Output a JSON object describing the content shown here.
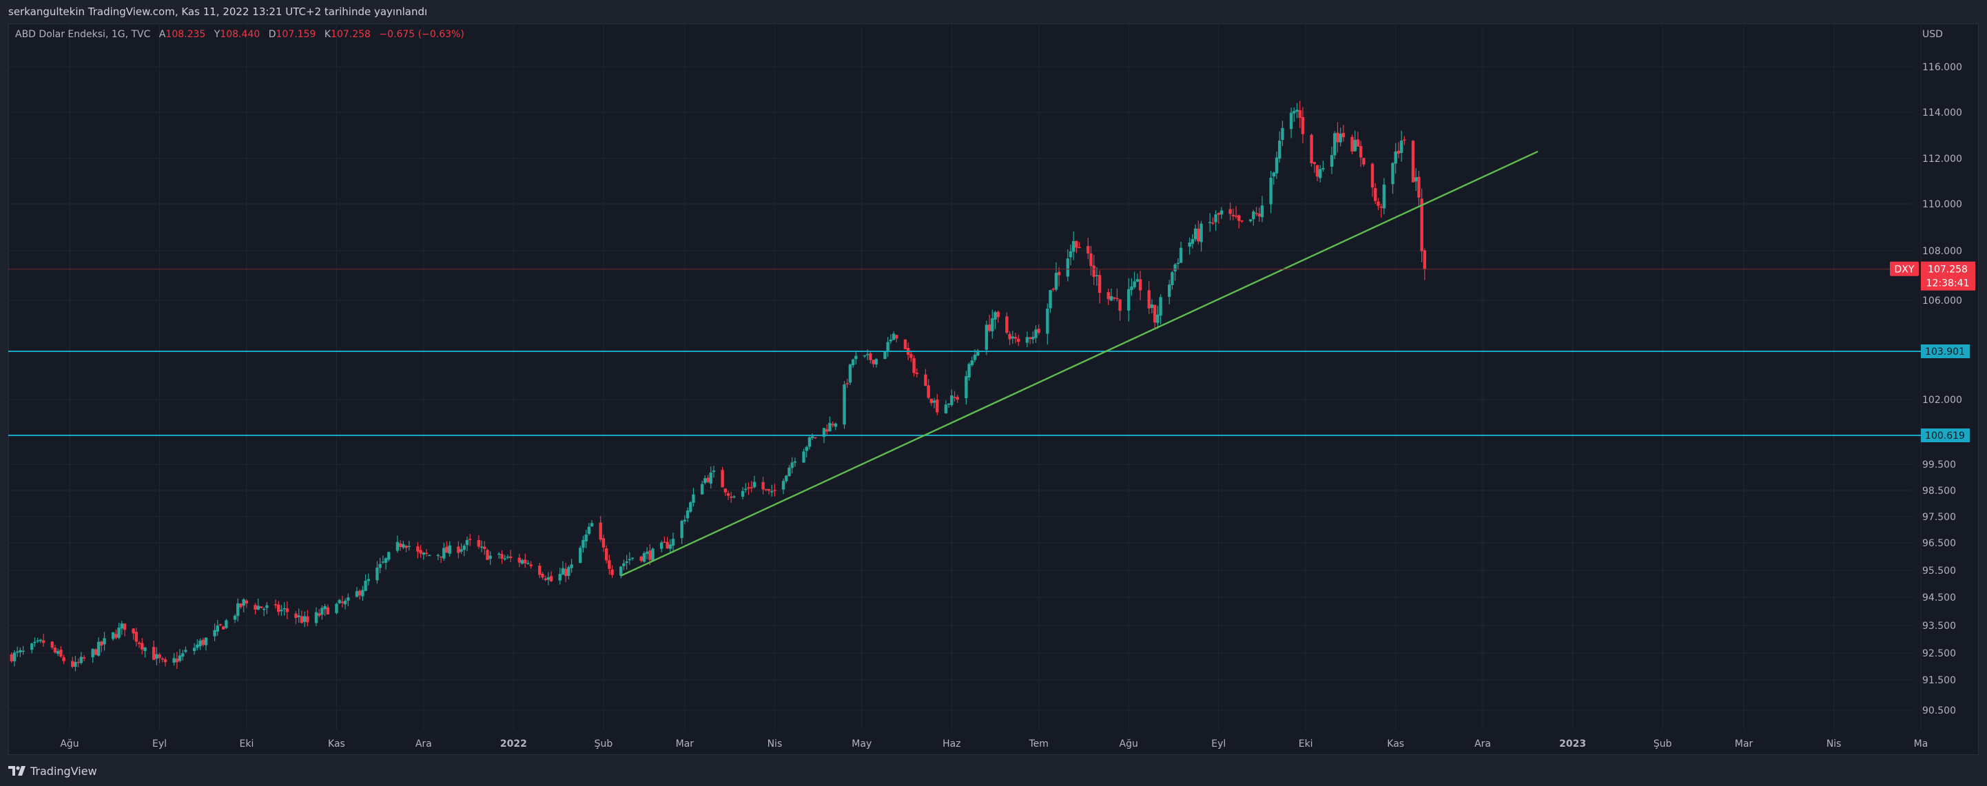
{
  "header": {
    "published_text": "serkangultekin TradingView.com, Kas 11, 2022 13:21 UTC+2 tarihinde yayınlandı"
  },
  "legend": {
    "title": "ABD Dolar Endeksi, 1G, TVC",
    "open_label": "A",
    "open": "108.235",
    "high_label": "Y",
    "high": "108.440",
    "low_label": "D",
    "low": "107.159",
    "close_label": "K",
    "close": "107.258",
    "change": "−0.675 (−0.63%)"
  },
  "footer": {
    "brand": "TradingView"
  },
  "colors": {
    "background": "#161a25",
    "frame": "#1e222d",
    "grid": "#222633",
    "up": "#26a69a",
    "down": "#f23645",
    "trendline": "#5fbd4f",
    "hline": "#19a7c4",
    "text": "#b2b5be"
  },
  "chart_data": {
    "type": "candlestick",
    "symbol": "DXY",
    "currency_label": "USD",
    "price_scale": "irregular (as printed by the axis)",
    "y_ticks": [
      "116.000",
      "114.000",
      "112.000",
      "110.000",
      "108.000",
      "106.000",
      "102.000",
      "99.500",
      "98.500",
      "97.500",
      "96.500",
      "95.500",
      "94.500",
      "93.500",
      "92.500",
      "91.500",
      "90.500"
    ],
    "x_ticks": [
      {
        "label": "Ağu",
        "date": "2021-08-01"
      },
      {
        "label": "Eyl",
        "date": "2021-09-01"
      },
      {
        "label": "Eki",
        "date": "2021-10-01"
      },
      {
        "label": "Kas",
        "date": "2021-11-01"
      },
      {
        "label": "Ara",
        "date": "2021-12-01"
      },
      {
        "label": "2022",
        "date": "2022-01-01",
        "bold": true
      },
      {
        "label": "Şub",
        "date": "2022-02-01"
      },
      {
        "label": "Mar",
        "date": "2022-03-01"
      },
      {
        "label": "Nis",
        "date": "2022-04-01"
      },
      {
        "label": "May",
        "date": "2022-05-01"
      },
      {
        "label": "Haz",
        "date": "2022-06-01"
      },
      {
        "label": "Tem",
        "date": "2022-07-01"
      },
      {
        "label": "Ağu",
        "date": "2022-08-01"
      },
      {
        "label": "Eyl",
        "date": "2022-09-01"
      },
      {
        "label": "Eki",
        "date": "2022-10-01"
      },
      {
        "label": "Kas",
        "date": "2022-11-01"
      },
      {
        "label": "Ara",
        "date": "2022-12-01"
      },
      {
        "label": "2023",
        "date": "2023-01-01",
        "bold": true
      },
      {
        "label": "Şub",
        "date": "2023-02-01"
      },
      {
        "label": "Mar",
        "date": "2023-03-01"
      },
      {
        "label": "Nis",
        "date": "2023-04-01"
      },
      {
        "label": "Ma",
        "date": "2023-05-01"
      }
    ],
    "price_path": [
      [
        "2021-07-12",
        92.4
      ],
      [
        "2021-07-16",
        92.5
      ],
      [
        "2021-07-23",
        92.9
      ],
      [
        "2021-07-29",
        92.3
      ],
      [
        "2021-08-03",
        92.0
      ],
      [
        "2021-08-11",
        92.7
      ],
      [
        "2021-08-20",
        93.5
      ],
      [
        "2021-08-27",
        92.7
      ],
      [
        "2021-09-03",
        92.0
      ],
      [
        "2021-09-10",
        92.5
      ],
      [
        "2021-09-20",
        93.2
      ],
      [
        "2021-09-30",
        94.3
      ],
      [
        "2021-10-08",
        94.1
      ],
      [
        "2021-10-15",
        94.0
      ],
      [
        "2021-10-22",
        93.6
      ],
      [
        "2021-10-29",
        94.1
      ],
      [
        "2021-11-05",
        94.3
      ],
      [
        "2021-11-12",
        95.1
      ],
      [
        "2021-11-24",
        96.6
      ],
      [
        "2021-11-30",
        96.0
      ],
      [
        "2021-12-10",
        96.2
      ],
      [
        "2021-12-17",
        96.5
      ],
      [
        "2021-12-24",
        96.0
      ],
      [
        "2021-12-31",
        95.9
      ],
      [
        "2022-01-07",
        95.8
      ],
      [
        "2022-01-14",
        95.1
      ],
      [
        "2022-01-21",
        95.6
      ],
      [
        "2022-01-28",
        97.2
      ],
      [
        "2022-02-04",
        95.5
      ],
      [
        "2022-02-11",
        96.0
      ],
      [
        "2022-02-18",
        96.1
      ],
      [
        "2022-02-25",
        96.6
      ],
      [
        "2022-03-07",
        98.9
      ],
      [
        "2022-03-11",
        99.1
      ],
      [
        "2022-03-18",
        98.2
      ],
      [
        "2022-03-25",
        98.8
      ],
      [
        "2022-03-31",
        98.3
      ],
      [
        "2022-04-08",
        99.8
      ],
      [
        "2022-04-14",
        100.5
      ],
      [
        "2022-04-22",
        101.2
      ],
      [
        "2022-04-28",
        103.6
      ],
      [
        "2022-05-06",
        103.6
      ],
      [
        "2022-05-13",
        104.6
      ],
      [
        "2022-05-20",
        103.0
      ],
      [
        "2022-05-27",
        101.7
      ],
      [
        "2022-06-03",
        102.1
      ],
      [
        "2022-06-10",
        104.1
      ],
      [
        "2022-06-15",
        105.3
      ],
      [
        "2022-06-24",
        104.2
      ],
      [
        "2022-06-30",
        104.7
      ],
      [
        "2022-07-07",
        107.0
      ],
      [
        "2022-07-14",
        108.5
      ],
      [
        "2022-07-22",
        106.6
      ],
      [
        "2022-07-29",
        105.9
      ],
      [
        "2022-08-05",
        106.6
      ],
      [
        "2022-08-10",
        105.2
      ],
      [
        "2022-08-19",
        108.1
      ],
      [
        "2022-08-26",
        108.8
      ],
      [
        "2022-09-02",
        109.6
      ],
      [
        "2022-09-09",
        109.0
      ],
      [
        "2022-09-16",
        109.7
      ],
      [
        "2022-09-23",
        113.1
      ],
      [
        "2022-09-28",
        114.1
      ],
      [
        "2022-10-05",
        111.2
      ],
      [
        "2022-10-13",
        113.3
      ],
      [
        "2022-10-21",
        112.0
      ],
      [
        "2022-10-26",
        109.7
      ],
      [
        "2022-11-03",
        112.9
      ],
      [
        "2022-11-09",
        110.4
      ],
      [
        "2022-11-10",
        108.2
      ],
      [
        "2022-11-11",
        107.258
      ]
    ],
    "trendline": {
      "start": {
        "date": "2022-02-07",
        "price": 95.3
      },
      "end": {
        "date": "2022-12-20",
        "price": 112.3
      }
    },
    "horizontal_lines": [
      {
        "price": 103.901,
        "label": "103.901"
      },
      {
        "price": 100.619,
        "label": "100.619"
      }
    ],
    "last_price": {
      "symbol": "DXY",
      "price": "107.258",
      "countdown": "12:38:41",
      "value": 107.258
    }
  }
}
